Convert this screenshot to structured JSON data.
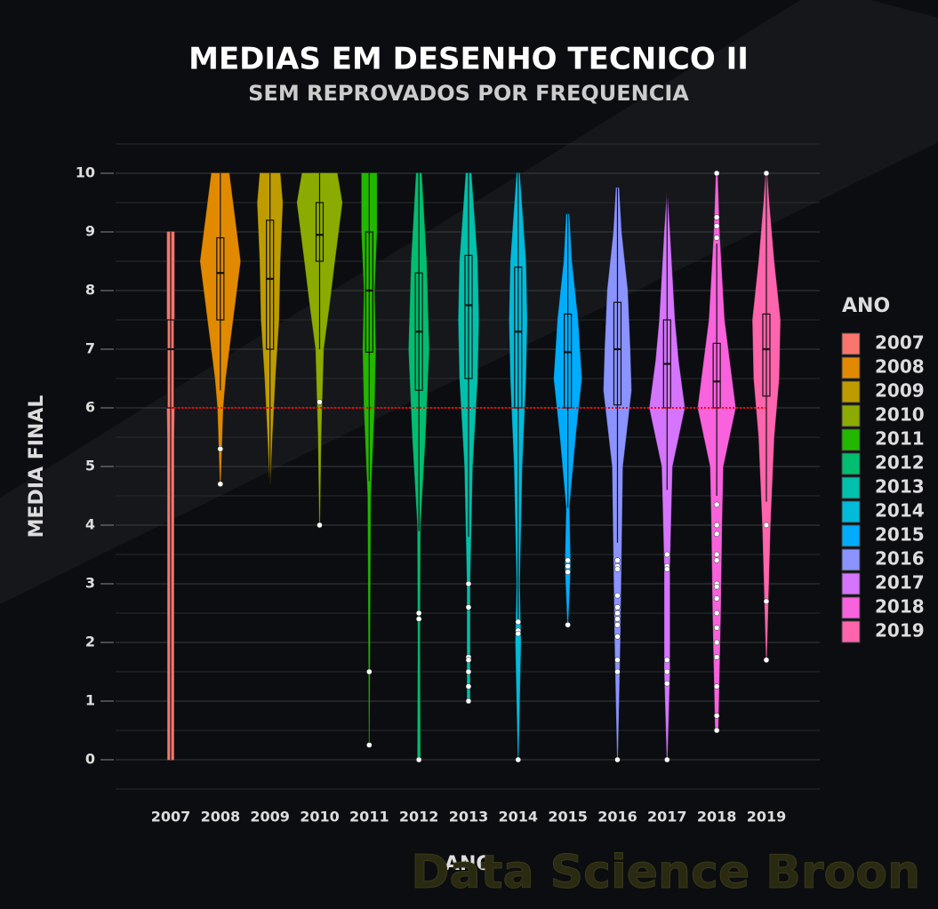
{
  "chart_data": {
    "type": "violin",
    "title": "MEDIAS EM DESENHO TECNICO II",
    "subtitle": "SEM REPROVADOS POR FREQUENCIA",
    "x_label": "ANO",
    "y_label": "MEDIA FINAL",
    "legend_title": "ANO",
    "watermark": "Data Science Broon",
    "categories": [
      "2007",
      "2008",
      "2009",
      "2010",
      "2011",
      "2012",
      "2013",
      "2014",
      "2015",
      "2016",
      "2017",
      "2018",
      "2019"
    ],
    "ylim": [
      -0.5,
      10.5
    ],
    "yticks": [
      0,
      1,
      2,
      3,
      4,
      5,
      6,
      7,
      8,
      9,
      10
    ],
    "yminor": [
      -0.5,
      0.5,
      1.5,
      2.5,
      3.5,
      4.5,
      5.5,
      6.5,
      7.5,
      8.5,
      9.5,
      10.5
    ],
    "grid": true,
    "legend": "right",
    "hline": {
      "value": 6,
      "color": "#ff0000"
    },
    "series": [
      {
        "name": "2007",
        "color": "#F8766D",
        "whisker": [
          0,
          9
        ],
        "box": [
          6,
          7,
          7.5
        ],
        "outliers": [],
        "violin": [
          [
            0,
            0.12
          ],
          [
            5.5,
            0.12
          ],
          [
            6,
            0.14
          ],
          [
            9,
            0.14
          ]
        ]
      },
      {
        "name": "2008",
        "color": "#E18A00",
        "whisker": [
          6.3,
          10
        ],
        "box": [
          7.5,
          8.3,
          8.9
        ],
        "outliers": [
          5.3,
          4.7
        ],
        "violin": [
          [
            4.7,
            0
          ],
          [
            6,
            0.1
          ],
          [
            6.5,
            0.2
          ],
          [
            7.5,
            0.5
          ],
          [
            8.5,
            0.8
          ],
          [
            9.5,
            0.5
          ],
          [
            10,
            0.35
          ]
        ]
      },
      {
        "name": "2009",
        "color": "#BE9C00",
        "whisker": [
          4.7,
          10
        ],
        "box": [
          7,
          8.2,
          9.2
        ],
        "outliers": [],
        "violin": [
          [
            4.7,
            0
          ],
          [
            5.5,
            0.08
          ],
          [
            6.5,
            0.2
          ],
          [
            7.5,
            0.35
          ],
          [
            8.5,
            0.4
          ],
          [
            9.5,
            0.5
          ],
          [
            10,
            0.4
          ]
        ]
      },
      {
        "name": "2010",
        "color": "#8CAB00",
        "whisker": [
          7,
          10
        ],
        "box": [
          8.5,
          8.95,
          9.5
        ],
        "outliers": [
          6.1,
          4
        ],
        "violin": [
          [
            4,
            0
          ],
          [
            5.5,
            0.05
          ],
          [
            7,
            0.15
          ],
          [
            7.8,
            0.4
          ],
          [
            8.5,
            0.6
          ],
          [
            9.5,
            0.9
          ],
          [
            10,
            0.7
          ]
        ]
      },
      {
        "name": "2011",
        "color": "#24B700",
        "whisker": [
          4.75,
          10
        ],
        "box": [
          6.95,
          8,
          9
        ],
        "outliers": [
          1.5,
          0.25
        ],
        "violin": [
          [
            0.25,
            0
          ],
          [
            4.5,
            0.05
          ],
          [
            6,
            0.2
          ],
          [
            7,
            0.25
          ],
          [
            8,
            0.2
          ],
          [
            9,
            0.3
          ],
          [
            10,
            0.3
          ]
        ]
      },
      {
        "name": "2012",
        "color": "#00BE70",
        "whisker": [
          3.9,
          10
        ],
        "box": [
          6.3,
          7.3,
          8.3
        ],
        "outliers": [
          2.5,
          2.4,
          0
        ],
        "violin": [
          [
            0,
            0.05
          ],
          [
            2,
            0.03
          ],
          [
            4,
            0.05
          ],
          [
            5.5,
            0.25
          ],
          [
            7,
            0.4
          ],
          [
            8.5,
            0.3
          ],
          [
            10,
            0.1
          ]
        ]
      },
      {
        "name": "2013",
        "color": "#00C1AB",
        "whisker": [
          3.8,
          10
        ],
        "box": [
          6.5,
          7.75,
          8.6
        ],
        "outliers": [
          3,
          2.6,
          1.75,
          1.7,
          1.5,
          1.25,
          1
        ],
        "violin": [
          [
            1,
            0.05
          ],
          [
            3,
            0.05
          ],
          [
            5,
            0.15
          ],
          [
            6.5,
            0.35
          ],
          [
            7.5,
            0.4
          ],
          [
            8.5,
            0.35
          ],
          [
            10,
            0.1
          ]
        ]
      },
      {
        "name": "2014",
        "color": "#00BBDA",
        "whisker": [
          2.4,
          10
        ],
        "box": [
          6,
          7.3,
          8.4
        ],
        "outliers": [
          2.35,
          2.2,
          2.15,
          0
        ],
        "violin": [
          [
            0,
            0
          ],
          [
            2,
            0.1
          ],
          [
            3,
            0.05
          ],
          [
            5,
            0.15
          ],
          [
            6.5,
            0.3
          ],
          [
            7.5,
            0.35
          ],
          [
            8.5,
            0.3
          ],
          [
            10,
            0.05
          ]
        ]
      },
      {
        "name": "2015",
        "color": "#00ACFC",
        "whisker": [
          4.3,
          9.3
        ],
        "box": [
          6,
          6.95,
          7.6
        ],
        "outliers": [
          3.4,
          3.3,
          3.2,
          2.3
        ],
        "violin": [
          [
            2.3,
            0
          ],
          [
            3.3,
            0.1
          ],
          [
            4.3,
            0.05
          ],
          [
            5.5,
            0.3
          ],
          [
            6.5,
            0.55
          ],
          [
            7.5,
            0.4
          ],
          [
            8.5,
            0.15
          ],
          [
            9.3,
            0.05
          ]
        ]
      },
      {
        "name": "2016",
        "color": "#8B93FF",
        "whisker": [
          3.7,
          9.75
        ],
        "box": [
          6.05,
          7,
          7.8
        ],
        "outliers": [
          3.4,
          3.3,
          3.25,
          2.8,
          2.6,
          2.5,
          2.4,
          2.3,
          2.1,
          1.7,
          1.5,
          0
        ],
        "violin": [
          [
            0,
            0
          ],
          [
            2,
            0.1
          ],
          [
            3.5,
            0.15
          ],
          [
            5,
            0.2
          ],
          [
            6.3,
            0.55
          ],
          [
            7,
            0.5
          ],
          [
            8,
            0.4
          ],
          [
            9,
            0.15
          ],
          [
            9.75,
            0.05
          ]
        ]
      },
      {
        "name": "2017",
        "color": "#D575FE",
        "whisker": [
          4.6,
          9.65
        ],
        "box": [
          6,
          6.75,
          7.5
        ],
        "outliers": [
          3.5,
          3.3,
          3.25,
          1.7,
          1.5,
          1.3,
          0
        ],
        "violin": [
          [
            0,
            0
          ],
          [
            1.5,
            0.1
          ],
          [
            3.3,
            0.1
          ],
          [
            5,
            0.2
          ],
          [
            6,
            0.7
          ],
          [
            6.8,
            0.45
          ],
          [
            7.5,
            0.3
          ],
          [
            9,
            0.1
          ],
          [
            9.65,
            0
          ]
        ]
      },
      {
        "name": "2018",
        "color": "#F962DD",
        "whisker": [
          4.5,
          8.8
        ],
        "box": [
          6,
          6.45,
          7.1
        ],
        "outliers": [
          10,
          9.25,
          9.1,
          8.9,
          4.35,
          4,
          3.85,
          3.5,
          3.4,
          3,
          2.95,
          2.75,
          2.5,
          2.25,
          2,
          1.75,
          1.25,
          0.75,
          0.5
        ],
        "violin": [
          [
            0.5,
            0.05
          ],
          [
            2.5,
            0.15
          ],
          [
            4,
            0.2
          ],
          [
            5,
            0.25
          ],
          [
            6,
            0.75
          ],
          [
            6.5,
            0.6
          ],
          [
            7.5,
            0.3
          ],
          [
            9,
            0.1
          ],
          [
            10,
            0.02
          ]
        ]
      },
      {
        "name": "2019",
        "color": "#FF65AC",
        "whisker": [
          4.4,
          10
        ],
        "box": [
          6.2,
          7,
          7.6
        ],
        "outliers": [
          10,
          4,
          2.7,
          1.7
        ],
        "violin": [
          [
            1.7,
            0
          ],
          [
            4,
            0.15
          ],
          [
            5.5,
            0.3
          ],
          [
            6.5,
            0.5
          ],
          [
            7.5,
            0.55
          ],
          [
            8.5,
            0.3
          ],
          [
            9.5,
            0.1
          ],
          [
            10,
            0.02
          ]
        ]
      }
    ]
  }
}
